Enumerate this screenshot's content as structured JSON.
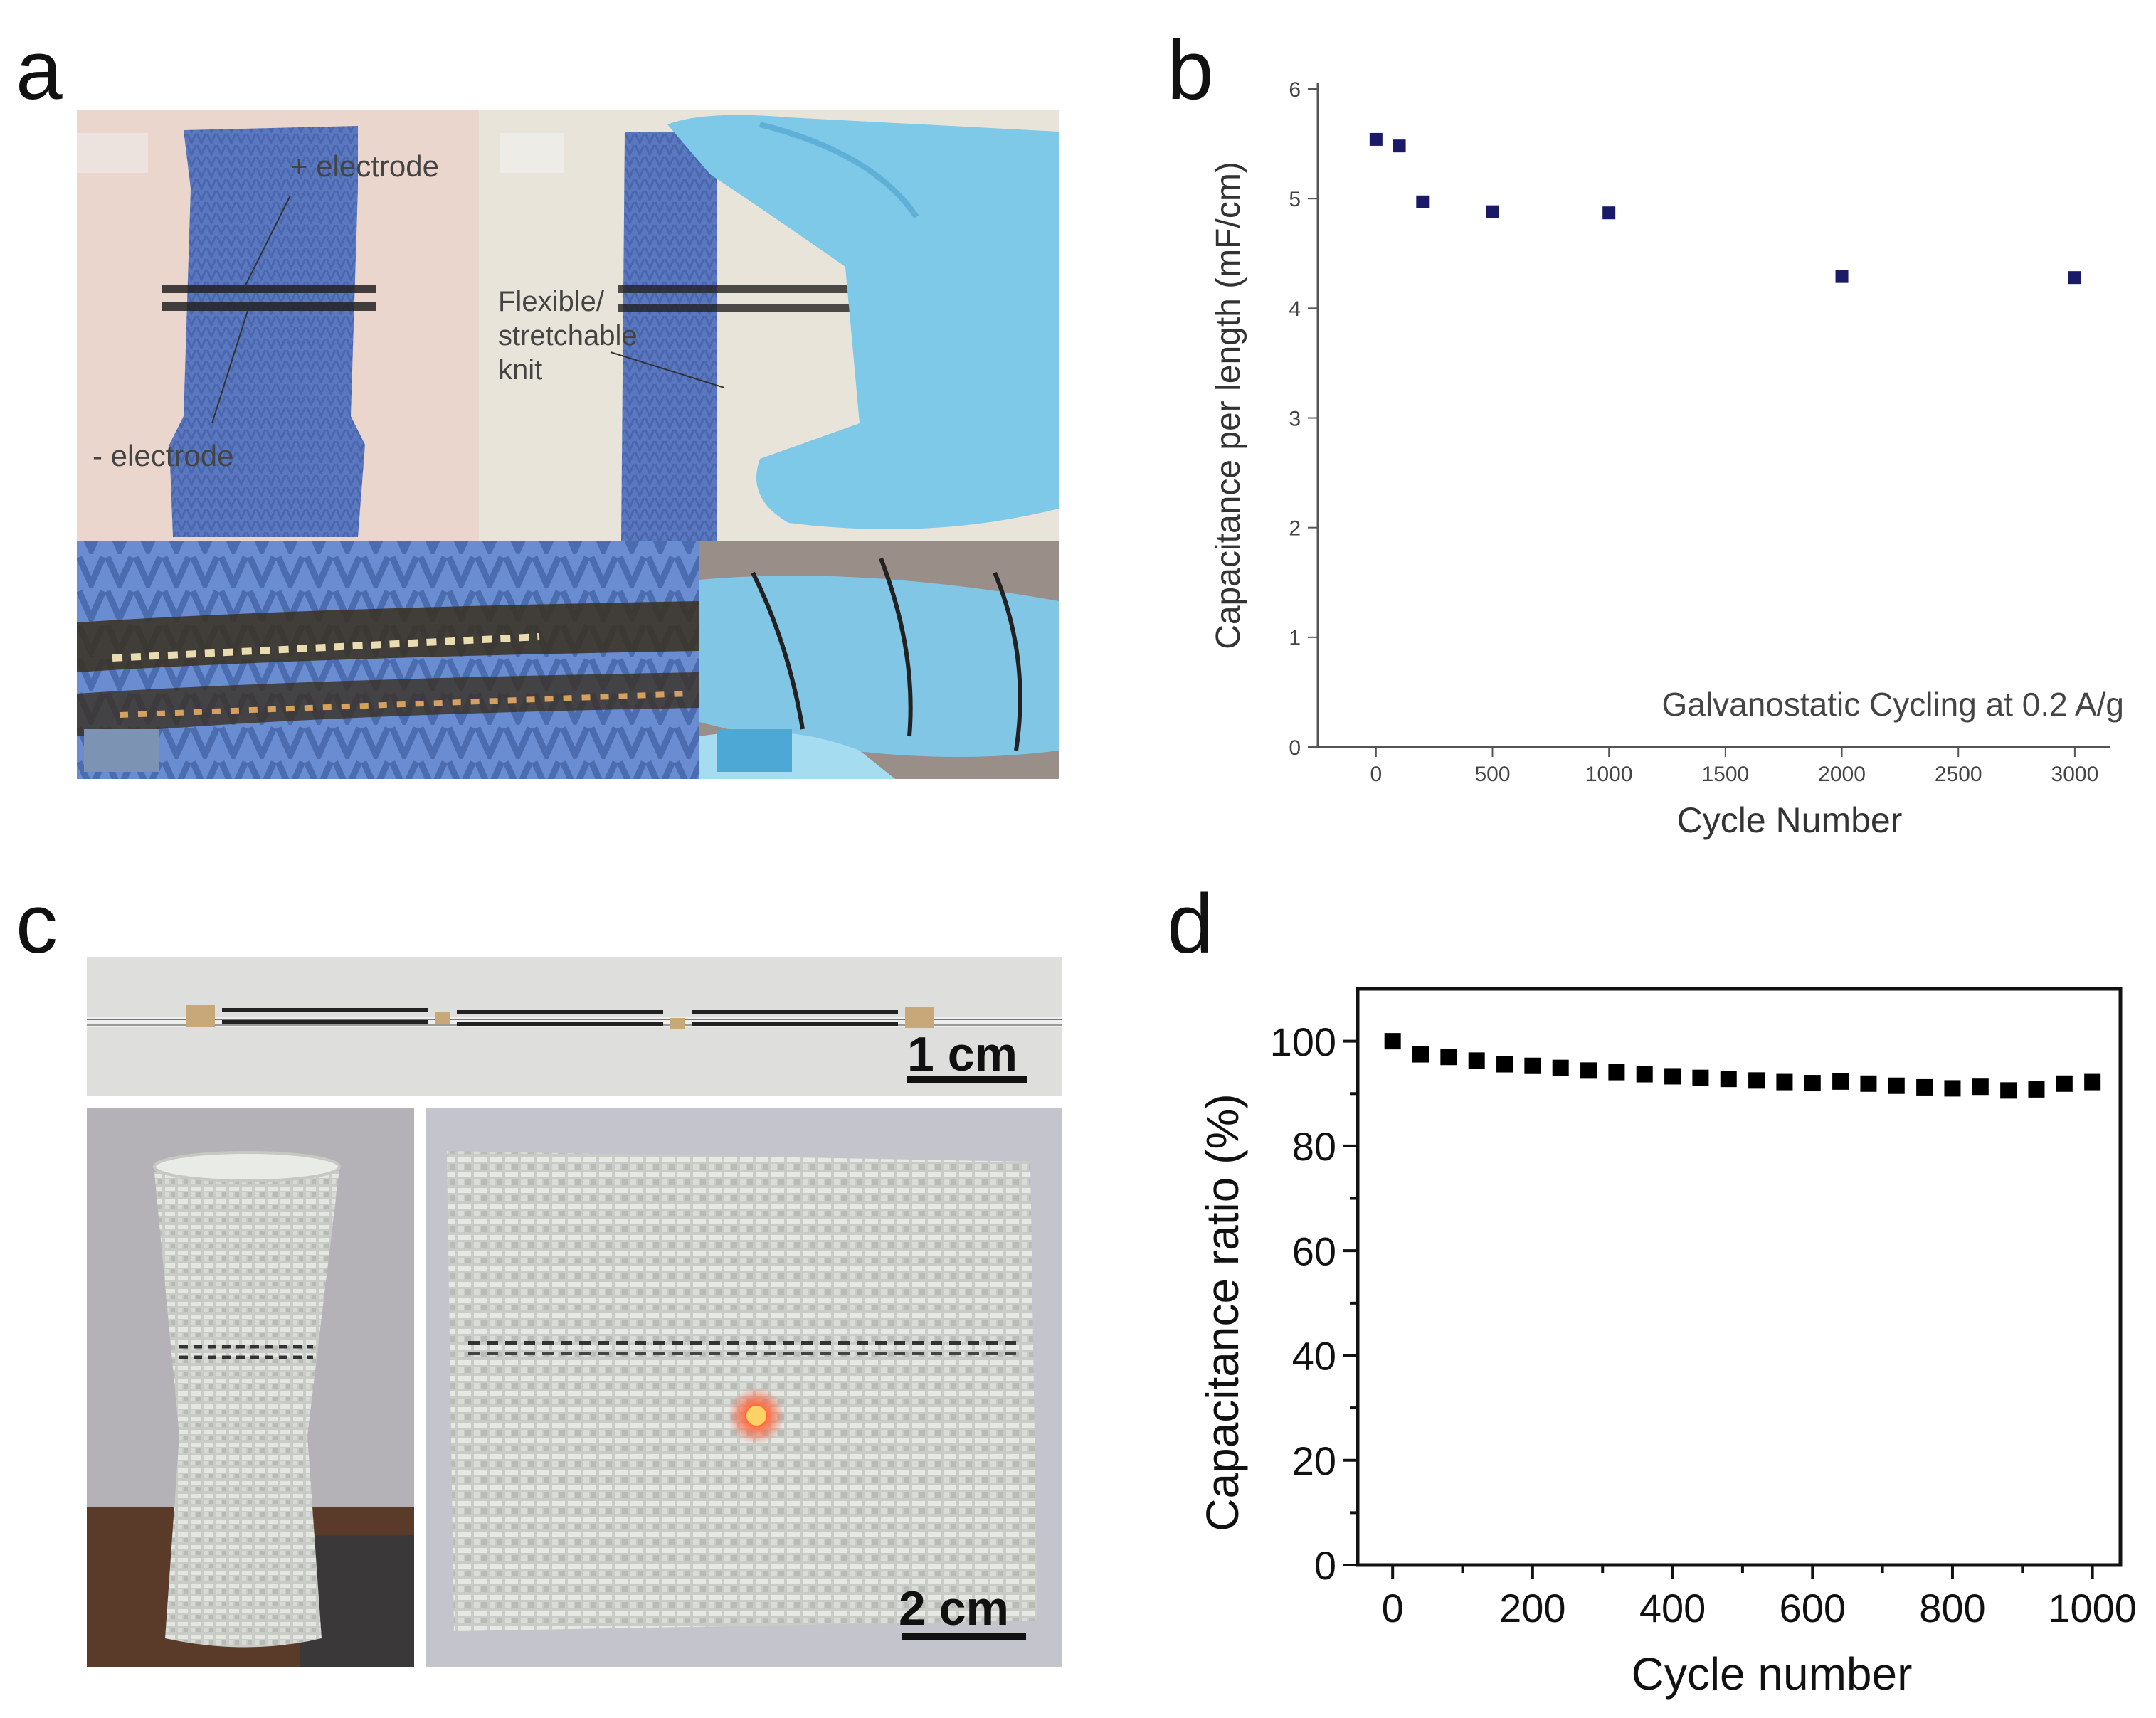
{
  "panels": {
    "a": "a",
    "b": "b",
    "c": "c",
    "d": "d"
  },
  "photo_a": {
    "plus_electrode": "+ electrode",
    "minus_electrode": "- electrode",
    "knit_line1": "Flexible/",
    "knit_line2": "stretchable",
    "knit_line3": "knit"
  },
  "photo_c": {
    "scale_top": "1 cm",
    "scale_bottom": "2 cm"
  },
  "colors": {
    "knit_blue": "#5a78c0",
    "glove_blue": "#7ec8e8",
    "fabric_grey": "#d8d8d0",
    "marker_b": "#1a1a66",
    "marker_d": "#000000",
    "led": "#ff5a3c"
  },
  "chart_data": [
    {
      "id": "b",
      "type": "scatter",
      "title": "",
      "xlabel": "Cycle Number",
      "ylabel": "Capacitance per length (mF/cm)",
      "annotation": "Galvanostatic Cycling at 0.2 A/g",
      "xlim": [
        -250,
        3150
      ],
      "ylim": [
        0,
        6
      ],
      "xticks": [
        0,
        500,
        1000,
        1500,
        2000,
        2500,
        3000
      ],
      "yticks": [
        0,
        1,
        2,
        3,
        4,
        5,
        6
      ],
      "frame": "left-bottom",
      "grid": false,
      "series": [
        {
          "x": [
            0,
            100,
            200,
            500,
            1000,
            2000,
            3000
          ],
          "y": [
            5.54,
            5.48,
            4.97,
            4.88,
            4.87,
            4.29,
            4.28
          ]
        }
      ]
    },
    {
      "id": "d",
      "type": "scatter",
      "title": "",
      "xlabel": "Cycle number",
      "ylabel": "Capacitance ratio (%)",
      "xlim": [
        -50,
        1040
      ],
      "ylim": [
        0,
        110
      ],
      "xticks": [
        0,
        200,
        400,
        600,
        800,
        1000
      ],
      "yticks": [
        0,
        20,
        40,
        60,
        80,
        100
      ],
      "frame": "box",
      "grid": false,
      "series": [
        {
          "x": [
            0,
            40,
            80,
            120,
            160,
            200,
            240,
            280,
            320,
            360,
            400,
            440,
            480,
            520,
            560,
            600,
            640,
            680,
            720,
            760,
            800,
            840,
            880,
            920,
            960,
            1000
          ],
          "y": [
            100,
            97.5,
            97,
            96.3,
            95.6,
            95.3,
            94.9,
            94.4,
            94.1,
            93.7,
            93.3,
            93.0,
            92.8,
            92.5,
            92.2,
            92.0,
            92.3,
            91.9,
            91.5,
            91.2,
            91.0,
            91.3,
            90.6,
            90.8,
            91.9,
            92.2
          ]
        }
      ]
    }
  ]
}
